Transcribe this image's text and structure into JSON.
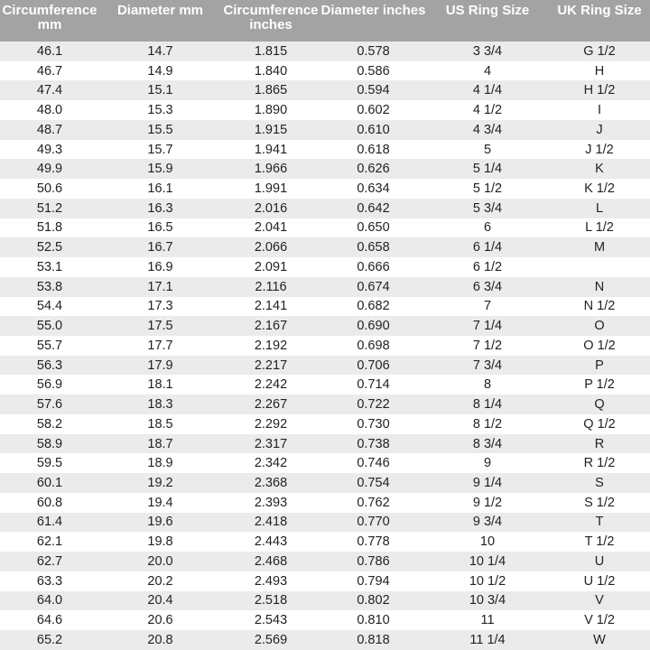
{
  "table": {
    "header": [
      "Circumference mm",
      "Diameter mm",
      "Circumference inches",
      "Diameter inches",
      "US Ring Size",
      "UK Ring Size"
    ],
    "rows": [
      [
        "46.1",
        "14.7",
        "1.815",
        "0.578",
        "3 3/4",
        "G 1/2"
      ],
      [
        "46.7",
        "14.9",
        "1.840",
        "0.586",
        "4",
        "H"
      ],
      [
        "47.4",
        "15.1",
        "1.865",
        "0.594",
        "4 1/4",
        "H 1/2"
      ],
      [
        "48.0",
        "15.3",
        "1.890",
        "0.602",
        "4 1/2",
        "I"
      ],
      [
        "48.7",
        "15.5",
        "1.915",
        "0.610",
        "4 3/4",
        "J"
      ],
      [
        "49.3",
        "15.7",
        "1.941",
        "0.618",
        "5",
        "J 1/2"
      ],
      [
        "49.9",
        "15.9",
        "1.966",
        "0.626",
        "5 1/4",
        "K"
      ],
      [
        "50.6",
        "16.1",
        "1.991",
        "0.634",
        "5 1/2",
        "K 1/2"
      ],
      [
        "51.2",
        "16.3",
        "2.016",
        "0.642",
        "5 3/4",
        "L"
      ],
      [
        "51.8",
        "16.5",
        "2.041",
        "0.650",
        "6",
        "L 1/2"
      ],
      [
        "52.5",
        "16.7",
        "2.066",
        "0.658",
        "6 1/4",
        "M"
      ],
      [
        "53.1",
        "16.9",
        "2.091",
        "0.666",
        "6 1/2",
        null
      ],
      [
        "53.8",
        "17.1",
        "2.116",
        "0.674",
        "6 3/4",
        "N"
      ],
      [
        "54.4",
        "17.3",
        "2.141",
        "0.682",
        "7",
        "N 1/2"
      ],
      [
        "55.0",
        "17.5",
        "2.167",
        "0.690",
        "7 1/4",
        "O"
      ],
      [
        "55.7",
        "17.7",
        "2.192",
        "0.698",
        "7 1/2",
        "O 1/2"
      ],
      [
        "56.3",
        "17.9",
        "2.217",
        "0.706",
        "7 3/4",
        "P"
      ],
      [
        "56.9",
        "18.1",
        "2.242",
        "0.714",
        "8",
        "P 1/2"
      ],
      [
        "57.6",
        "18.3",
        "2.267",
        "0.722",
        "8 1/4",
        "Q"
      ],
      [
        "58.2",
        "18.5",
        "2.292",
        "0.730",
        "8 1/2",
        "Q 1/2"
      ],
      [
        "58.9",
        "18.7",
        "2.317",
        "0.738",
        "8 3/4",
        "R"
      ],
      [
        "59.5",
        "18.9",
        "2.342",
        "0.746",
        "9",
        "R 1/2"
      ],
      [
        "60.1",
        "19.2",
        "2.368",
        "0.754",
        "9 1/4",
        "S"
      ],
      [
        "60.8",
        "19.4",
        "2.393",
        "0.762",
        "9 1/2",
        "S 1/2"
      ],
      [
        "61.4",
        "19.6",
        "2.418",
        "0.770",
        "9 3/4",
        "T"
      ],
      [
        "62.1",
        "19.8",
        "2.443",
        "0.778",
        "10",
        "T 1/2"
      ],
      [
        "62.7",
        "20.0",
        "2.468",
        "0.786",
        "10 1/4",
        "U"
      ],
      [
        "63.3",
        "20.2",
        "2.493",
        "0.794",
        "10 1/2",
        "U 1/2"
      ],
      [
        "64.0",
        "20.4",
        "2.518",
        "0.802",
        "10 3/4",
        "V"
      ],
      [
        "64.6",
        "20.6",
        "2.543",
        "0.810",
        "11",
        "V 1/2"
      ],
      [
        "65.2",
        "20.8",
        "2.569",
        "0.818",
        "11 1/4",
        "W"
      ]
    ]
  }
}
